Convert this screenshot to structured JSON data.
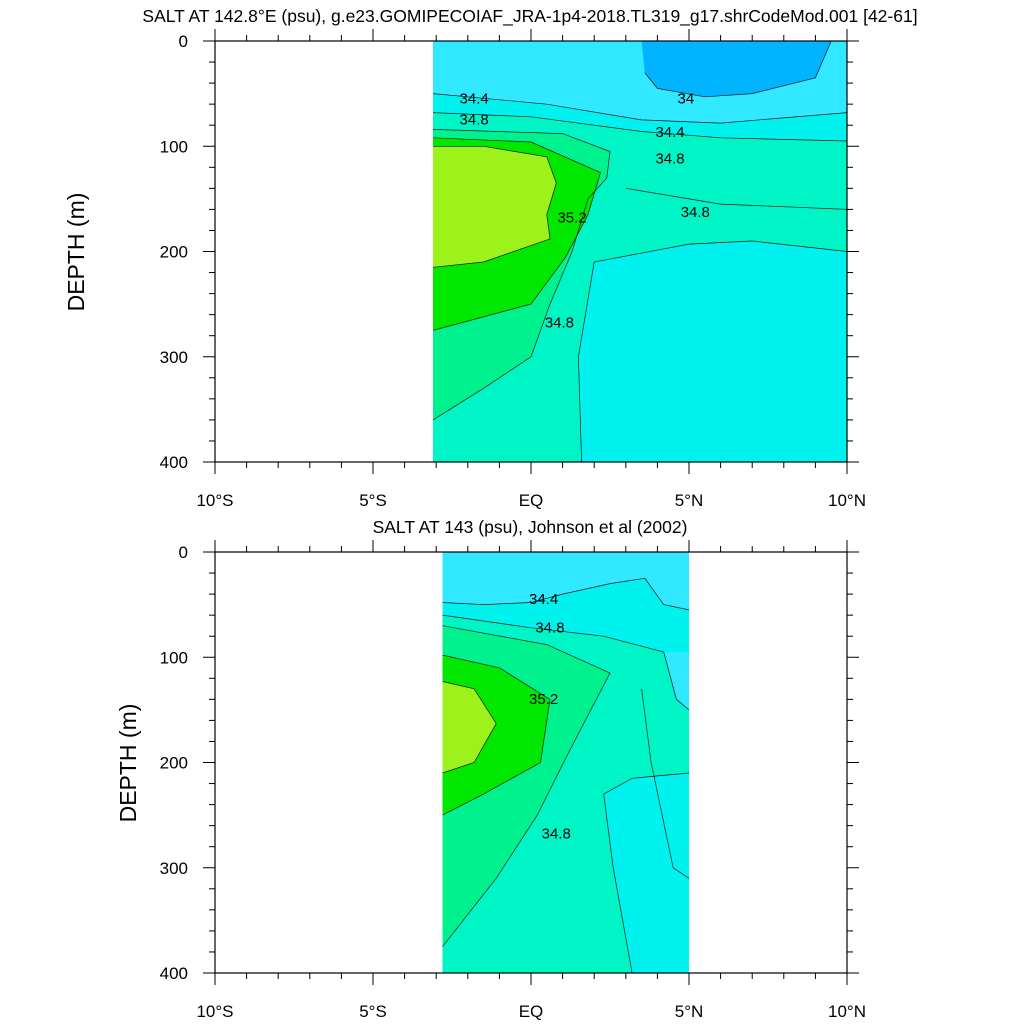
{
  "chart_data": [
    {
      "type": "contour",
      "title": "SALT AT 142.8°E (psu), g.e23.GOMIPECOIAF_JRA-1p4-2018.TL319_g17.shrCodeMod.001 [42-61]",
      "xlabel": "",
      "ylabel": "DEPTH (m)",
      "xlim": [
        -10,
        10
      ],
      "ylim": [
        400,
        0
      ],
      "x_ticks": [
        -10,
        -5,
        0,
        5,
        10
      ],
      "x_tick_labels": [
        "10°S",
        "5°S",
        "EQ",
        "5°N",
        "10°N"
      ],
      "y_ticks": [
        0,
        100,
        200,
        300,
        400
      ],
      "y_tick_labels": [
        "0",
        "100",
        "200",
        "300",
        "400"
      ],
      "data_extent": {
        "lat": [
          -3.1,
          10
        ],
        "depth": [
          0,
          400
        ]
      },
      "fill_levels": [
        {
          "salinity": 33.9,
          "color": "#00b4ff"
        },
        {
          "salinity": 34.2,
          "color": "#30e8ff"
        },
        {
          "salinity": 34.6,
          "color": "#00f2ee"
        },
        {
          "salinity": 34.8,
          "color": "#00f5c6"
        },
        {
          "salinity": 35.0,
          "color": "#00f28e"
        },
        {
          "salinity": 35.2,
          "color": "#00e800"
        },
        {
          "salinity": 35.4,
          "color": "#9cf21a"
        }
      ],
      "contour_labels": [
        {
          "text": "34.4",
          "lat": -1.8,
          "depth": 55
        },
        {
          "text": "34.8",
          "lat": -1.8,
          "depth": 75
        },
        {
          "text": "34",
          "lat": 4.9,
          "depth": 55
        },
        {
          "text": "34.4",
          "lat": 4.4,
          "depth": 87
        },
        {
          "text": "34.8",
          "lat": 4.4,
          "depth": 112
        },
        {
          "text": "35.2",
          "lat": 1.3,
          "depth": 168
        },
        {
          "text": "34.8",
          "lat": 5.2,
          "depth": 163
        },
        {
          "text": "34.8",
          "lat": 0.9,
          "depth": 268
        }
      ]
    },
    {
      "type": "contour",
      "title": "SALT AT 143 (psu), Johnson et al (2002)",
      "xlabel": "",
      "ylabel": "DEPTH (m)",
      "xlim": [
        -10,
        10
      ],
      "ylim": [
        400,
        0
      ],
      "x_ticks": [
        -10,
        -5,
        0,
        5,
        10
      ],
      "x_tick_labels": [
        "10°S",
        "5°S",
        "EQ",
        "5°N",
        "10°N"
      ],
      "y_ticks": [
        0,
        100,
        200,
        300,
        400
      ],
      "y_tick_labels": [
        "0",
        "100",
        "200",
        "300",
        "400"
      ],
      "data_extent": {
        "lat": [
          -2.8,
          5
        ],
        "depth": [
          0,
          400
        ]
      },
      "fill_levels": [
        {
          "salinity": 34.2,
          "color": "#30e8ff"
        },
        {
          "salinity": 34.6,
          "color": "#00f2ee"
        },
        {
          "salinity": 34.8,
          "color": "#00f5c6"
        },
        {
          "salinity": 35.0,
          "color": "#00f28e"
        },
        {
          "salinity": 35.2,
          "color": "#00e800"
        },
        {
          "salinity": 35.4,
          "color": "#9cf21a"
        }
      ],
      "contour_labels": [
        {
          "text": "34.4",
          "lat": 0.4,
          "depth": 45
        },
        {
          "text": "34.8",
          "lat": 0.6,
          "depth": 72
        },
        {
          "text": "35.2",
          "lat": 0.4,
          "depth": 140
        },
        {
          "text": "34.8",
          "lat": 0.8,
          "depth": 268
        }
      ]
    }
  ]
}
